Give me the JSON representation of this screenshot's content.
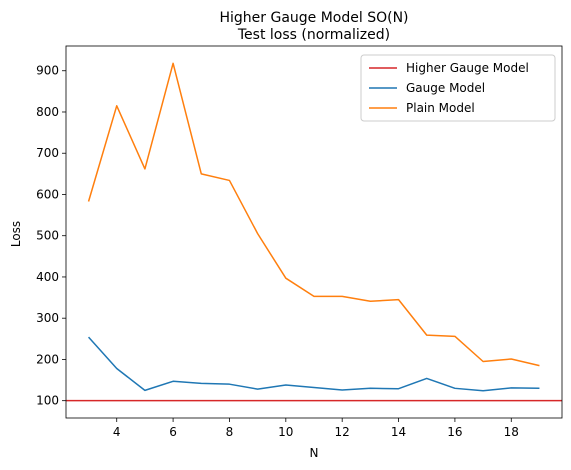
{
  "chart_data": {
    "type": "line",
    "title": "Higher Gauge Model SO(N)",
    "subtitle": "Test loss (normalized)",
    "xlabel": "N",
    "ylabel": "Loss",
    "xlim": [
      2.2,
      19.8
    ],
    "ylim": [
      58,
      960
    ],
    "xticks": [
      4,
      6,
      8,
      10,
      12,
      14,
      16,
      18
    ],
    "yticks": [
      100,
      200,
      300,
      400,
      500,
      600,
      700,
      800,
      900
    ],
    "grid": false,
    "legend_position": "top-right",
    "x": [
      3,
      4,
      5,
      6,
      7,
      8,
      9,
      10,
      11,
      12,
      13,
      14,
      15,
      16,
      17,
      18,
      19
    ],
    "series": [
      {
        "name": "Higher Gauge Model",
        "color": "#d62728",
        "kind": "hline",
        "value": 100
      },
      {
        "name": "Gauge Model",
        "color": "#1f77b4",
        "kind": "line",
        "values": [
          254,
          178,
          125,
          147,
          142,
          140,
          128,
          138,
          132,
          126,
          130,
          129,
          154,
          130,
          124,
          131,
          130
        ]
      },
      {
        "name": "Plain Model",
        "color": "#ff7f0e",
        "kind": "line",
        "values": [
          583,
          815,
          662,
          918,
          650,
          634,
          505,
          397,
          353,
          353,
          341,
          345,
          259,
          256,
          195,
          201,
          185
        ]
      }
    ]
  }
}
